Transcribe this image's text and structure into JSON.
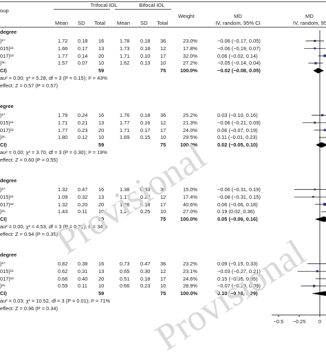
{
  "headers": {
    "group": "oup",
    "trifocal": "Trifocal IOL",
    "bifocal": "Bifocal IOL",
    "weight": "Weight",
    "md": "MD",
    "md_sub": "IV, random, 95% CI",
    "md_plot": "MD",
    "md_plot_sub": "IV, random, 95% CI",
    "mean": "Mean",
    "sd": "SD",
    "total": "Total"
  },
  "subgroups": [
    {
      "title": "degree",
      "studies": [
        {
          "label": ")¹°",
          "t_mean": "1.72",
          "t_sd": "0.18",
          "t_total": "16",
          "b_mean": "1.78",
          "b_sd": "0.18",
          "b_total": "36",
          "weight": "23.0%",
          "ci": "−0.06 (−0.17, 0.05)"
        },
        {
          "label": "015)¹¹",
          "t_mean": "1.66",
          "t_sd": "0.17",
          "t_total": "13",
          "b_mean": "1.73",
          "b_sd": "0.18",
          "b_total": "12",
          "weight": "17.8%",
          "ci": "−0.06 (−0.19, 0.07)"
        },
        {
          "label": "017)¹²",
          "t_mean": "1.77",
          "t_sd": "0.14",
          "t_total": "20",
          "b_mean": "1.71",
          "b_sd": "0.10",
          "b_total": "17",
          "weight": "32.0%",
          "ci": "0.06 (−0.02, 0.14)"
        },
        {
          "label": ")²⁶",
          "t_mean": "1.57",
          "t_sd": "0.07",
          "t_total": "10",
          "b_mean": "1.62",
          "b_sd": "0.13",
          "b_total": "10",
          "weight": "27.2%",
          "ci": "−0.05 (−0.14, 0.04)"
        }
      ],
      "total_label": "CI)",
      "t_total": "59",
      "b_total": "75",
      "weight": "100.0%",
      "ci": "−0.02 (−0.08, 0.05)",
      "het": "au² = 0.00; χ² = 5.28, df = 3 (P = 0.15); I² = 43%",
      "effect": "effect: Z = 0.57 (P = 0.57)"
    },
    {
      "title": "egree",
      "studies": [
        {
          "label": ")¹°",
          "t_mean": "1.79",
          "t_sd": "0.24",
          "t_total": "16",
          "b_mean": "1.76",
          "b_sd": "0.18",
          "b_total": "36",
          "weight": "25.2%",
          "ci": "0.03 (−0.10, 0.16)"
        },
        {
          "label": "015)¹¹",
          "t_mean": "1.71",
          "t_sd": "0.21",
          "t_total": "13",
          "b_mean": "1.77",
          "b_sd": "0.16",
          "b_total": "12",
          "weight": "21.3%",
          "ci": "−0.06 (−0.21, 0.09)"
        },
        {
          "label": "017)¹²",
          "t_mean": "1.77",
          "t_sd": "0.23",
          "t_total": "20",
          "b_mean": "1.71",
          "b_sd": "0.17",
          "b_total": "17",
          "weight": "24.0%",
          "ci": "0.06 (−0.07, 0.19)"
        },
        {
          "label": ")²⁶",
          "t_mean": "1.80",
          "t_sd": "0.12",
          "t_total": "10",
          "b_mean": "1.69",
          "b_sd": "0.15",
          "b_total": "10",
          "weight": "29.5%",
          "ci": "0.11 (−0.01, 0.23)"
        }
      ],
      "total_label": "CI)",
      "t_total": "59",
      "b_total": "75",
      "weight": "100.0%",
      "ci": "0.02 (−0.05, 0.10)",
      "het": "au² = 0.00; χ² = 3.70, df = 3 (P = 0.30); I² = 19%",
      "effect": "effect: Z = 0.60 (P = 0.55)"
    },
    {
      "title": "degree",
      "studies": [
        {
          "label": ")¹°",
          "t_mean": "1.32",
          "t_sd": "0.47",
          "t_total": "16",
          "b_mean": "1.38",
          "b_sd": "0.33",
          "b_total": "36",
          "weight": "15.0%",
          "ci": "−0.06 (−0.31, 0.19)"
        },
        {
          "label": "015)¹¹",
          "t_mean": "1.09",
          "t_sd": "0.32",
          "t_total": "13",
          "b_mean": "1.17",
          "b_sd": "0.27",
          "b_total": "12",
          "weight": "17.4%",
          "ci": "−0.08 (−0.31, 0.15)"
        },
        {
          "label": "017)¹²",
          "t_mean": "1.32",
          "t_sd": "0.20",
          "t_total": "20",
          "b_mean": "1.26",
          "b_sd": "0.18",
          "b_total": "17",
          "weight": "40.6%",
          "ci": "0.06 (−0.06, 0.18)"
        },
        {
          "label": ")²⁶",
          "t_mean": "1.43",
          "t_sd": "0.11",
          "t_total": "10",
          "b_mean": "1.24",
          "b_sd": "0.25",
          "b_total": "10",
          "weight": "27.0%",
          "ci": "0.19 (0.02, 0.36)"
        }
      ],
      "total_label": "CI)",
      "t_total": "59",
      "b_total": "75",
      "weight": "100.0%",
      "ci": "0.05 (−0.06, 0.16)",
      "het": "au² = 0.00; χ² = 4.53, df = 3 (P = 0.21); I² = 34%",
      "effect": "effect: Z = 0.94 (P = 0.35)"
    },
    {
      "title": "degree",
      "studies": [
        {
          "label": ")¹°",
          "t_mean": "0.82",
          "t_sd": "0.38",
          "t_total": "16",
          "b_mean": "0.73",
          "b_sd": "0.47",
          "b_total": "36",
          "weight": "23.2%",
          "ci": "0.09 (−0.15, 0.33)"
        },
        {
          "label": "015)¹¹",
          "t_mean": "0.62",
          "t_sd": "0.31",
          "t_total": "13",
          "b_mean": "0.65",
          "b_sd": "0.30",
          "b_total": "12",
          "weight": "23.1%",
          "ci": "−0.03 (−0.27, 0.21)"
        },
        {
          "label": "017)¹²",
          "t_mean": "0.66",
          "t_sd": "0.40",
          "t_total": "20",
          "b_mean": "0.51",
          "b_sd": "0.18",
          "b_total": "17",
          "weight": "24.6%",
          "ci": "0.15 (−0.05, 0.35)"
        },
        {
          "label": ")²⁶",
          "t_mean": "0.59",
          "t_sd": "0.11",
          "t_total": "10",
          "b_mean": "0.66",
          "b_sd": "0.23",
          "b_total": "10",
          "weight": "28.9%",
          "ci": "−0.07 (−0.23, 0.09)"
        }
      ],
      "total_label": "CI)",
      "t_total": "59",
      "b_total": "75",
      "weight": "100.0%",
      "ci": "0.10 (−0.10, 0.29)",
      "het": "au² = 0.03; χ² = 10.52, df = 3 (P = 0.01); I² = 71%",
      "effect": "effect: Z = 0.96 (P = 0.34)"
    }
  ],
  "watermark": {
    "line1": "Provisional",
    "line2": "Provisional"
  },
  "chart_data": {
    "type": "forest",
    "axis_ticks": [
      "−0.5",
      "−0.25",
      "0"
    ],
    "xlim": [
      -0.5,
      0.25
    ],
    "null_value": 0,
    "colors": {
      "marker": "#2e2e8c",
      "diamond": "#000000",
      "line": "#000000"
    },
    "series": [
      {
        "name": "",
        "studies": [
          {
            "md": -0.06,
            "lo": -0.17,
            "hi": 0.05,
            "weight": 23.0
          },
          {
            "md": -0.06,
            "lo": -0.19,
            "hi": 0.07,
            "weight": 17.8
          },
          {
            "md": 0.06,
            "lo": -0.02,
            "hi": 0.14,
            "weight": 32.0
          },
          {
            "md": -0.05,
            "lo": -0.14,
            "hi": 0.04,
            "weight": 27.2
          }
        ],
        "pooled": {
          "md": -0.02,
          "lo": -0.08,
          "hi": 0.05
        }
      },
      {
        "name": "",
        "studies": [
          {
            "md": 0.03,
            "lo": -0.1,
            "hi": 0.16,
            "weight": 25.2
          },
          {
            "md": -0.06,
            "lo": -0.21,
            "hi": 0.09,
            "weight": 21.3
          },
          {
            "md": 0.06,
            "lo": -0.07,
            "hi": 0.19,
            "weight": 24.0
          },
          {
            "md": 0.11,
            "lo": -0.01,
            "hi": 0.23,
            "weight": 29.5
          }
        ],
        "pooled": {
          "md": 0.02,
          "lo": -0.05,
          "hi": 0.1
        }
      },
      {
        "name": "",
        "studies": [
          {
            "md": -0.06,
            "lo": -0.31,
            "hi": 0.19,
            "weight": 15.0
          },
          {
            "md": -0.08,
            "lo": -0.31,
            "hi": 0.15,
            "weight": 17.4
          },
          {
            "md": 0.06,
            "lo": -0.06,
            "hi": 0.18,
            "weight": 40.6
          },
          {
            "md": 0.19,
            "lo": 0.02,
            "hi": 0.36,
            "weight": 27.0
          }
        ],
        "pooled": {
          "md": 0.05,
          "lo": -0.06,
          "hi": 0.16
        }
      },
      {
        "name": "",
        "studies": [
          {
            "md": 0.09,
            "lo": -0.15,
            "hi": 0.33,
            "weight": 23.2
          },
          {
            "md": -0.03,
            "lo": -0.27,
            "hi": 0.21,
            "weight": 23.1
          },
          {
            "md": 0.15,
            "lo": -0.05,
            "hi": 0.35,
            "weight": 24.6
          },
          {
            "md": -0.07,
            "lo": -0.23,
            "hi": 0.09,
            "weight": 28.9
          }
        ],
        "pooled": {
          "md": 0.1,
          "lo": -0.1,
          "hi": 0.29
        }
      }
    ]
  }
}
